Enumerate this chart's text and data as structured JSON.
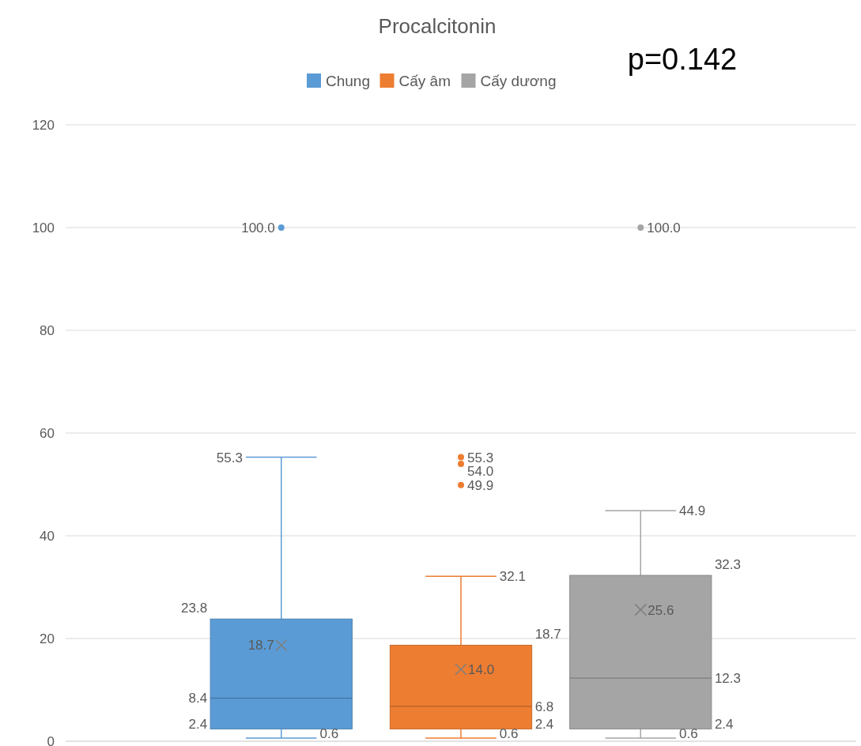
{
  "chart_data": {
    "type": "box",
    "title": "Procalcitonin",
    "categories": [
      null
    ],
    "series": [
      {
        "name": "Chung",
        "color": "#5b9bd5",
        "boxes": [
          {
            "low": 0.6,
            "q1": 2.4,
            "median": 8.4,
            "q3": 23.8,
            "high": 55.3,
            "mean": 18.7,
            "outliers": [
              100.0
            ]
          }
        ]
      },
      {
        "name": "Cấy âm",
        "color": "#ed7d31",
        "boxes": [
          {
            "low": 0.6,
            "q1": 2.4,
            "median": 6.8,
            "q3": 18.7,
            "high": 32.1,
            "mean": 14.0,
            "outliers": [
              55.3,
              54.0,
              49.9
            ]
          }
        ]
      },
      {
        "name": "Cấy dương",
        "color": "#a5a5a5",
        "boxes": [
          {
            "low": 0.6,
            "q1": 2.4,
            "median": 12.3,
            "q3": 32.3,
            "high": 44.9,
            "mean": 25.6,
            "outliers": [
              100.0
            ]
          }
        ]
      }
    ],
    "annotations": [
      "p=0.142",
      "0.6",
      "2.4",
      "8.4",
      "23.8",
      "55.3",
      "18.7",
      "100.0",
      "0.6",
      "2.4",
      "6.8",
      "18.7",
      "32.1",
      "14.0",
      "55.3",
      "54.0",
      "49.9",
      "0.6",
      "2.4",
      "12.3",
      "32.3",
      "44.9",
      "25.6",
      "100.0"
    ],
    "ylim": [
      0,
      120
    ],
    "yticks": [
      0,
      20,
      40,
      60,
      80,
      100,
      120
    ],
    "grid": "y",
    "legend": "top"
  }
}
